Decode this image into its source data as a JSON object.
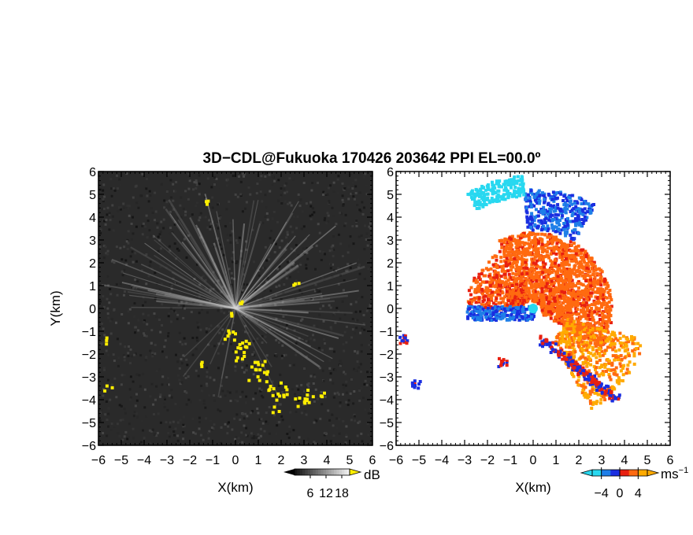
{
  "title": "3D−CDL@Fukuoka 170426 203642 PPI EL=00.0º",
  "chart_data": [
    {
      "type": "heatmap",
      "panel": "reflectivity",
      "xlabel": "X(km)",
      "ylabel": "Y(km)",
      "xlim": [
        -6,
        6
      ],
      "ylim": [
        -6,
        6
      ],
      "xticks": [
        "−6",
        "−5",
        "−4",
        "−3",
        "−2",
        "−1",
        "0",
        "1",
        "2",
        "3",
        "4",
        "5",
        "6"
      ],
      "yticks": [
        "6",
        "5",
        "4",
        "3",
        "2",
        "1",
        "0",
        "−1",
        "−2",
        "−3",
        "−4",
        "−5",
        "−6"
      ],
      "colorbar": {
        "unit": "dB",
        "ticks": [
          "6",
          "12",
          "18"
        ],
        "range": [
          0,
          21
        ]
      },
      "background_color": "#2a2a2a",
      "highlight_color": "#ffee00",
      "beam_color": "#d8d8d8"
    },
    {
      "type": "heatmap",
      "panel": "doppler-velocity",
      "xlabel": "X(km)",
      "xlim": [
        -6,
        6
      ],
      "ylim": [
        -6,
        6
      ],
      "xticks": [
        "−6",
        "−5",
        "−4",
        "−3",
        "−2",
        "−1",
        "0",
        "1",
        "2",
        "3",
        "4",
        "5",
        "6"
      ],
      "yticks": [
        "6",
        "5",
        "4",
        "3",
        "2",
        "1",
        "0",
        "−1",
        "−2",
        "−3",
        "−4",
        "−5",
        "−6"
      ],
      "colorbar": {
        "unit": "ms",
        "unit_exp": "−1",
        "ticks": [
          "−4",
          "0",
          "4"
        ],
        "range": [
          -6,
          6
        ]
      },
      "colors": {
        "cyan": "#28d8f0",
        "blue": "#1a2ee0",
        "mid_blue": "#1f7fe8",
        "red": "#e82010",
        "orange": "#ff6a10",
        "amber": "#ffaa00"
      }
    }
  ]
}
